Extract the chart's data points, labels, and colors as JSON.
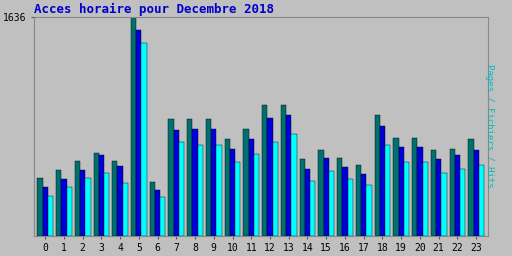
{
  "title": "Acces horaire pour Decembre 2018",
  "title_color": "#0000cc",
  "title_fontsize": 9,
  "ylabel": "Pages / Fichiers / Hits",
  "ylabel_color": "#00bbbb",
  "background_color": "#c0c0c0",
  "plot_bg_color": "#c0c0c0",
  "ymax": 1636,
  "ytick_label": "1636",
  "hours": [
    0,
    1,
    2,
    3,
    4,
    5,
    6,
    7,
    8,
    9,
    10,
    11,
    12,
    13,
    14,
    15,
    16,
    17,
    18,
    19,
    20,
    21,
    22,
    23
  ],
  "pages": [
    430,
    490,
    560,
    620,
    560,
    1636,
    400,
    870,
    870,
    870,
    720,
    800,
    980,
    980,
    570,
    640,
    580,
    530,
    900,
    730,
    730,
    640,
    650,
    720
  ],
  "fichiers": [
    360,
    420,
    490,
    600,
    520,
    1540,
    340,
    790,
    800,
    800,
    650,
    720,
    880,
    900,
    500,
    580,
    510,
    460,
    820,
    660,
    660,
    570,
    600,
    640
  ],
  "hits": [
    300,
    360,
    430,
    470,
    390,
    1440,
    290,
    700,
    680,
    680,
    550,
    610,
    700,
    760,
    410,
    480,
    420,
    380,
    680,
    550,
    550,
    470,
    500,
    530
  ],
  "color_pages": "#007070",
  "color_fichiers": "#0000dd",
  "color_hits": "#00ffff",
  "bar_width": 0.28,
  "border_color": "#000000",
  "grid_color": "#aaaaaa",
  "grid_linewidth": 0.5
}
